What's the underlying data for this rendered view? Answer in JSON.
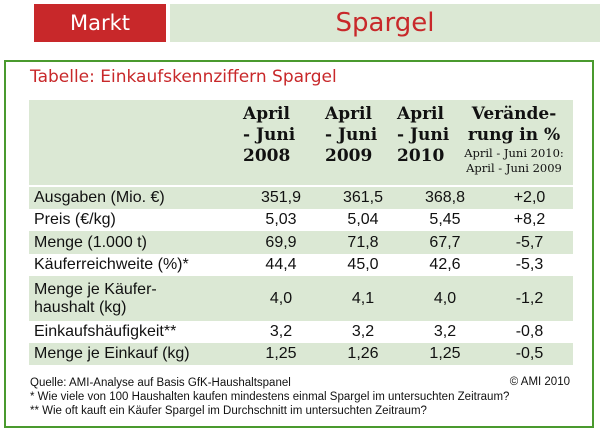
{
  "header": {
    "tab_label": "Markt",
    "title": "Spargel"
  },
  "table": {
    "title": "Tabelle: Einkaufskennziffern Spargel",
    "columns": [
      {
        "l1": "April",
        "l2": "- Juni",
        "l3": "2008"
      },
      {
        "l1": "April",
        "l2": "- Juni",
        "l3": "2009"
      },
      {
        "l1": "April",
        "l2": "- Juni",
        "l3": "2010"
      },
      {
        "l1": "Verände-",
        "l2": "rung in %",
        "sub1": "April - Juni 2010:",
        "sub2": "April - Juni 2009"
      }
    ],
    "rows": [
      {
        "label": "Ausgaben (Mio. €)",
        "v2008": "351,9",
        "v2009": "361,5",
        "v2010": "368,8",
        "change": "+2,0"
      },
      {
        "label": "Preis (€/kg)",
        "v2008": "5,03",
        "v2009": "5,04",
        "v2010": "5,45",
        "change": "+8,2"
      },
      {
        "label": "Menge (1.000 t)",
        "v2008": "69,9",
        "v2009": "71,8",
        "v2010": "67,7",
        "change": "-5,7"
      },
      {
        "label": "Käuferreichweite (%)*",
        "v2008": "44,4",
        "v2009": "45,0",
        "v2010": "42,6",
        "change": "-5,3"
      },
      {
        "label": "Menge je Käufer-haushalt (kg)",
        "v2008": "4,0",
        "v2009": "4,1",
        "v2010": "4,0",
        "change": "-1,2"
      },
      {
        "label": "Einkaufshäufigkeit**",
        "v2008": "3,2",
        "v2009": "3,2",
        "v2010": "3,2",
        "change": "-0,8"
      },
      {
        "label": "Menge je Einkauf (kg)",
        "v2008": "1,25",
        "v2009": "1,26",
        "v2010": "1,25",
        "change": "-0,5"
      }
    ]
  },
  "footer": {
    "source": "Quelle: AMI-Analyse auf Basis GfK-Haushaltspanel",
    "copyright": "© AMI 2010",
    "note1": "* Wie viele von 100 Haushalten kaufen mindestens einmal Spargel im untersuchten Zeitraum?",
    "note2": "** Wie oft kauft ein Käufer Spargel im Durchschnitt im untersuchten Zeitraum?"
  },
  "colors": {
    "accent_red": "#c8282a",
    "band_green": "#dbe8d4",
    "border_green": "#4a9a2e"
  },
  "chart_data": {
    "type": "table",
    "title": "Tabelle: Einkaufskennziffern Spargel",
    "columns": [
      "April - Juni 2008",
      "April - Juni 2009",
      "April - Juni 2010",
      "Veränderung in % April - Juni 2010: April - Juni 2009"
    ],
    "rows": [
      {
        "label": "Ausgaben (Mio. €)",
        "values": [
          351.9,
          361.5,
          368.8,
          2.0
        ]
      },
      {
        "label": "Preis (€/kg)",
        "values": [
          5.03,
          5.04,
          5.45,
          8.2
        ]
      },
      {
        "label": "Menge (1.000 t)",
        "values": [
          69.9,
          71.8,
          67.7,
          -5.7
        ]
      },
      {
        "label": "Käuferreichweite (%)*",
        "values": [
          44.4,
          45.0,
          42.6,
          -5.3
        ]
      },
      {
        "label": "Menge je Käuferhaushalt (kg)",
        "values": [
          4.0,
          4.1,
          4.0,
          -1.2
        ]
      },
      {
        "label": "Einkaufshäufigkeit**",
        "values": [
          3.2,
          3.2,
          3.2,
          -0.8
        ]
      },
      {
        "label": "Menge je Einkauf (kg)",
        "values": [
          1.25,
          1.26,
          1.25,
          -0.5
        ]
      }
    ]
  }
}
